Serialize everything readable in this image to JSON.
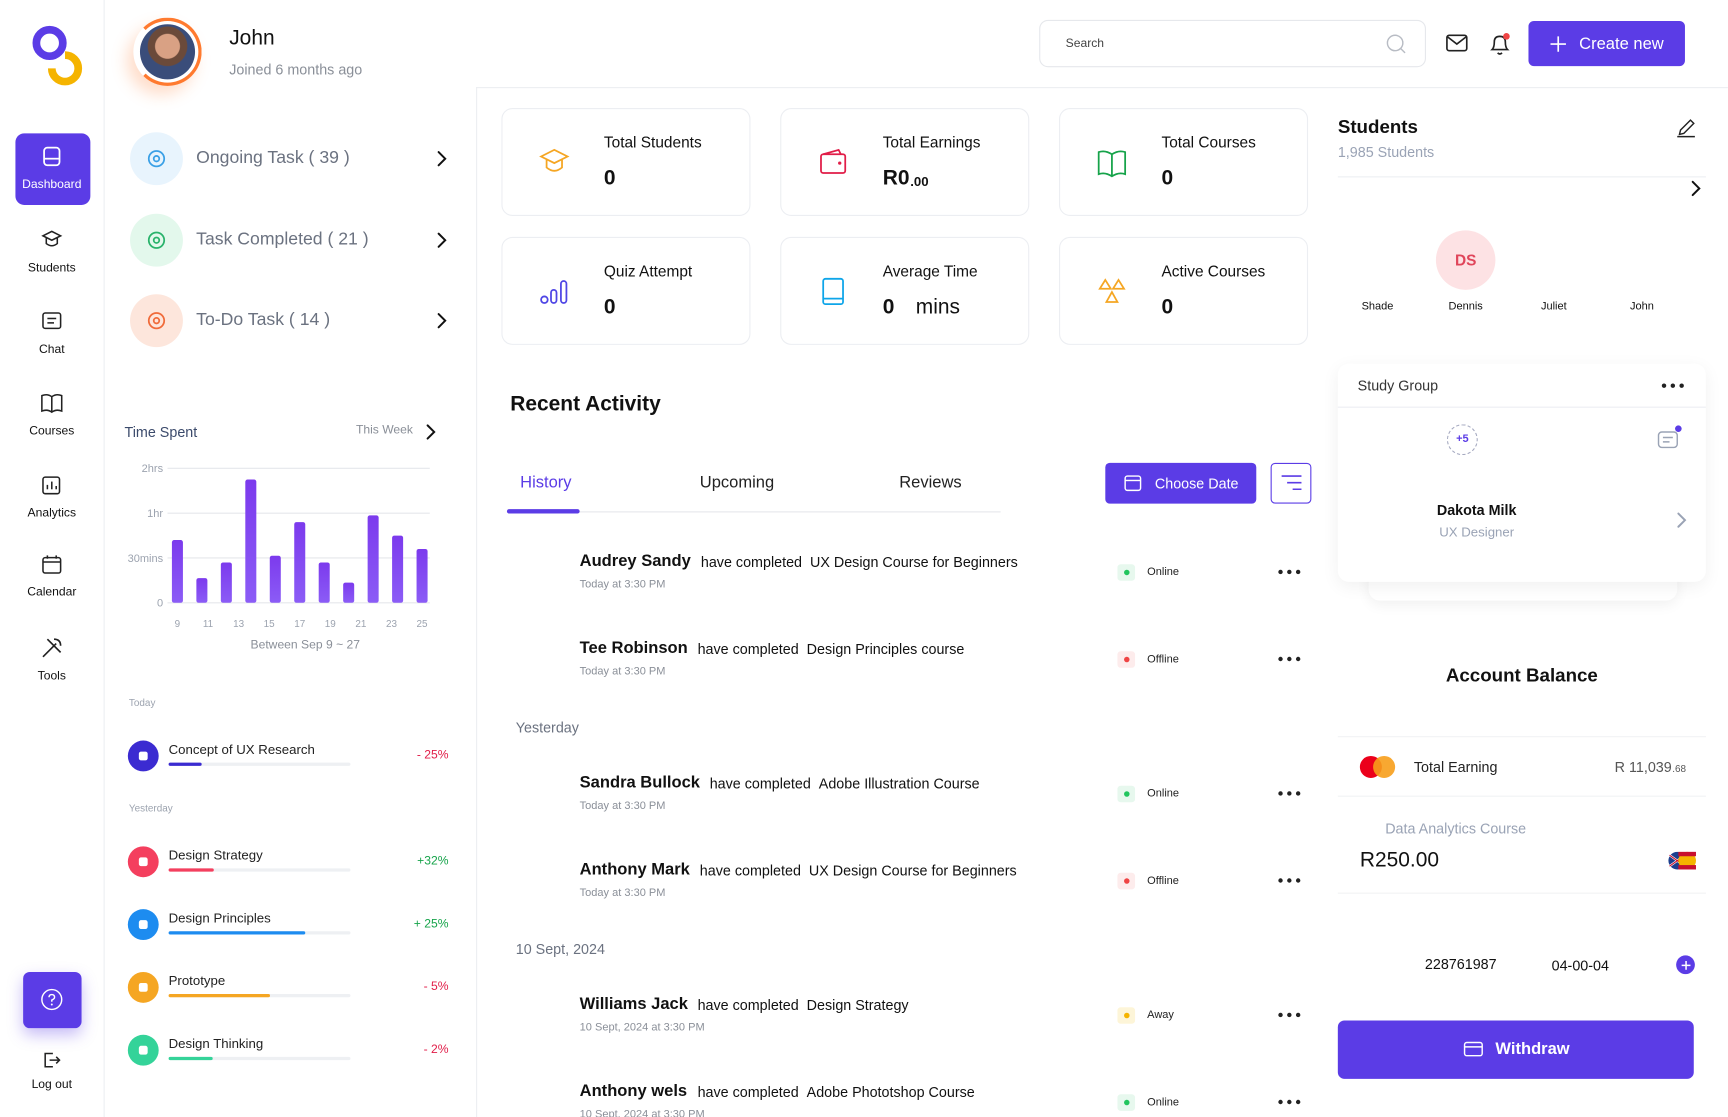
{
  "profile": {
    "name": "John",
    "joined": "Joined 6 months ago"
  },
  "sidebar": {
    "items": [
      "Dashboard",
      "Students",
      "Chat",
      "Courses",
      "Analytics",
      "Calendar",
      "Tools"
    ],
    "logout": "Log out"
  },
  "tasks": [
    "Ongoing Task ( 39 )",
    "Task Completed ( 21 )",
    "To-Do Task ( 14 )"
  ],
  "time_spent": {
    "title": "Time Spent",
    "period": "This Week",
    "caption": "Between Sep 9 ~ 27",
    "chart_data": {
      "type": "bar",
      "x": [
        9,
        10.6,
        12.2,
        13.8,
        15.4,
        17,
        18.6,
        20.2,
        21.8,
        23.4,
        25
      ],
      "values": [
        1.4,
        0.55,
        0.9,
        2.75,
        1.05,
        1.8,
        0.9,
        0.45,
        1.95,
        1.5,
        1.2
      ],
      "xlim": [
        9,
        25
      ],
      "xticks": [
        9,
        11,
        13,
        15,
        17,
        19,
        21,
        23,
        25
      ],
      "ylim": [
        0,
        3
      ],
      "yticks": [
        0,
        {
          "value": 1,
          "label": "30mins"
        },
        {
          "value": 2,
          "label": "1hr"
        },
        {
          "value": 3,
          "label": "2hrs"
        }
      ],
      "color": "#7c3aed",
      "grid": true
    }
  },
  "courses": {
    "today": "Today",
    "yesterday": "Yesterday",
    "items": [
      {
        "name": "Concept of UX Research",
        "change": "- 25%",
        "color": "#3b2bd1"
      },
      {
        "name": "Design Strategy",
        "change": "+32%",
        "color": "#f43f5e"
      },
      {
        "name": "Design Principles",
        "change": "+ 25%",
        "color": "#1d8cf0"
      },
      {
        "name": "Prototype",
        "change": "- 5%",
        "color": "#f5a623"
      },
      {
        "name": "Design Thinking",
        "change": "- 2%",
        "color": "#34d399"
      }
    ]
  },
  "header": {
    "search": "Search",
    "create": "Create new"
  },
  "stats": [
    {
      "label": "Total Students",
      "value": "0"
    },
    {
      "label": "Total Earnings",
      "value": "R0",
      "cents": ".00"
    },
    {
      "label": "Total Courses",
      "value": "0"
    },
    {
      "label": "Quiz Attempt",
      "value": "0"
    },
    {
      "label": "Average Time",
      "value": "0",
      "unit": "mins"
    },
    {
      "label": "Active Courses",
      "value": "0"
    }
  ],
  "activity": {
    "title": "Recent Activity",
    "tabs": [
      "History",
      "Upcoming",
      "Reviews"
    ],
    "choose_date": "Choose Date",
    "sections": [
      {
        "items": [
          {
            "name": "Audrey Sandy",
            "action": "have completed",
            "course": "UX Design Course for Beginners",
            "time": "Today at 3:30 PM",
            "status": "Online"
          },
          {
            "name": "Tee Robinson",
            "action": "have completed",
            "course": "Design Principles course",
            "time": "Today at 3:30 PM",
            "status": "Offline"
          }
        ]
      },
      {
        "label": "Yesterday",
        "items": [
          {
            "name": "Sandra Bullock",
            "action": "have completed",
            "course": "Adobe Illustration Course",
            "time": "Today at 3:30 PM",
            "status": "Online"
          },
          {
            "name": "Anthony Mark",
            "action": "have completed",
            "course": "UX Design Course for Beginners",
            "time": "Today at 3:30 PM",
            "status": "Offline"
          }
        ]
      },
      {
        "label": "10 Sept, 2024",
        "items": [
          {
            "name": "Williams Jack",
            "action": "have completed",
            "course": "Design Strategy",
            "time": "10 Sept, 2024  at 3:30 PM",
            "status": "Away"
          },
          {
            "name": "Anthony wels",
            "action": "have completed",
            "course": "Adobe Phototshop Course",
            "time": "10 Sept, 2024  at 3:30 PM",
            "status": "Online"
          }
        ]
      }
    ]
  },
  "students": {
    "title": "Students",
    "count": "1,985 Students",
    "initials": "DS",
    "names": [
      "Shade",
      "Dennis",
      "Juliet",
      "John"
    ]
  },
  "study_group": {
    "title": "Study Group",
    "more": "+5",
    "member": "Dakota Milk",
    "role": "UX Designer"
  },
  "account": {
    "title": "Account Balance",
    "total_label": "Total Earning",
    "total": "R 11,039",
    "total_cents": ".68",
    "course": "Data Analytics Course",
    "amount": "R250.00",
    "account_no": "228761987",
    "sort_code": "04-00-04",
    "withdraw": "Withdraw"
  }
}
